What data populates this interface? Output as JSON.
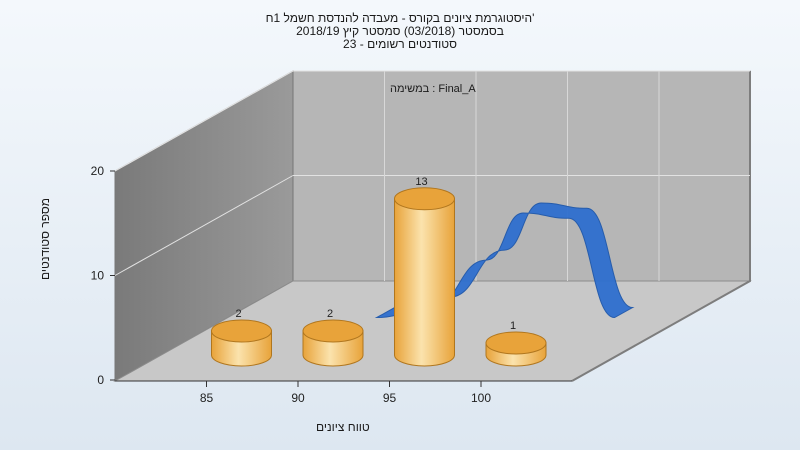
{
  "chart_data": {
    "type": "bar",
    "title_lines": [
      "היסטוגרמת ציונים בקורס - מעבדה להנדסת חשמל 1ח'",
      "בסמסטר  (03/2018)  סמסטר קיץ 2018/19",
      "סטודנטים רשומים - 23"
    ],
    "xlabel": "טווח ציונים",
    "ylabel": "מספר סטודנטים",
    "legend": "במשימה : Final_A",
    "ylim": [
      0,
      20
    ],
    "yticks": [
      0,
      10,
      20
    ],
    "xticks": [
      85,
      90,
      95,
      100
    ],
    "series": [
      {
        "name": "Final_A",
        "x": [
          85,
          90,
          95,
          100
        ],
        "values": [
          2,
          2,
          13,
          1
        ]
      }
    ],
    "curve": [
      {
        "x": 89,
        "y": 1.0
      },
      {
        "x": 92,
        "y": 2.0
      },
      {
        "x": 95,
        "y": 6.5
      },
      {
        "x": 97,
        "y": 11.0
      },
      {
        "x": 99.5,
        "y": 10.5
      },
      {
        "x": 102,
        "y": 1.0
      }
    ],
    "colors": {
      "bar": "#e8a33a",
      "bar_light": "#fbe3ad",
      "curve": "#2f6fcf",
      "wall": "#8a8a8a",
      "back": "#b6b6b6",
      "floor": "#c8c8c8"
    }
  }
}
